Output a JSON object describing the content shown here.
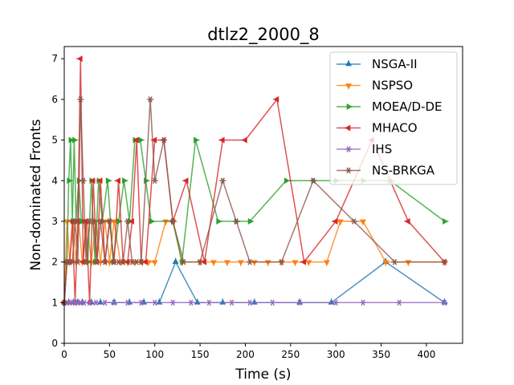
{
  "chart_data": {
    "type": "line",
    "title": "dtlz2_2000_8",
    "xlabel": "Time (s)",
    "ylabel": "Non-dominated Fronts",
    "xlim": [
      0,
      440
    ],
    "ylim": [
      0,
      7.3
    ],
    "xticks": [
      0,
      50,
      100,
      150,
      200,
      250,
      300,
      350,
      400
    ],
    "yticks": [
      0,
      1,
      2,
      3,
      4,
      5,
      6,
      7
    ],
    "legend_position": "upper-right",
    "grid": false,
    "series": [
      {
        "name": "NSGA-II",
        "color": "#1f77b4",
        "marker": "tri-up",
        "x": [
          0,
          5,
          10,
          15,
          20,
          30,
          40,
          55,
          72,
          88,
          105,
          123,
          147,
          175,
          210,
          260,
          295,
          355,
          420
        ],
        "y": [
          1,
          1,
          1,
          1,
          1,
          1,
          1,
          1,
          1,
          1,
          1,
          2,
          1,
          1,
          1,
          1,
          1,
          2,
          1
        ]
      },
      {
        "name": "NSPSO",
        "color": "#ff7f0e",
        "marker": "tri-down",
        "x": [
          0,
          3,
          6,
          10,
          13,
          16,
          20,
          25,
          30,
          35,
          40,
          45,
          50,
          55,
          62,
          70,
          78,
          86,
          93,
          100,
          112,
          120,
          130,
          150,
          165,
          180,
          195,
          210,
          225,
          240,
          255,
          270,
          290,
          305,
          330,
          355,
          380,
          420
        ],
        "y": [
          1,
          3,
          2,
          3,
          2,
          3,
          2,
          3,
          2,
          3,
          2,
          3,
          2,
          3,
          2,
          2,
          2,
          2,
          2,
          2,
          3,
          3,
          2,
          2,
          2,
          2,
          2,
          2,
          2,
          2,
          2,
          2,
          2,
          3,
          3,
          2,
          2,
          2
        ]
      },
      {
        "name": "MOEA/D-DE",
        "color": "#2ca02c",
        "marker": "tri-left",
        "x": [
          0,
          3,
          5,
          7,
          9,
          11,
          13,
          16,
          19,
          22,
          26,
          30,
          34,
          38,
          42,
          48,
          54,
          60,
          66,
          72,
          78,
          84,
          90,
          96,
          120,
          130,
          145,
          170,
          190,
          205,
          245,
          275,
          300,
          330,
          360,
          420
        ],
        "y": [
          1,
          2,
          4,
          5,
          3,
          5,
          3,
          4,
          3,
          3,
          2,
          4,
          2,
          4,
          3,
          4,
          2,
          3,
          4,
          3,
          5,
          5,
          4,
          3,
          3,
          2,
          5,
          3,
          3,
          3,
          4,
          4,
          4,
          4,
          4,
          3
        ]
      },
      {
        "name": "MHACO",
        "color": "#d62728",
        "marker": "tri-right",
        "x": [
          0,
          3,
          6,
          9,
          12,
          15,
          18,
          21,
          24,
          28,
          32,
          36,
          40,
          45,
          50,
          55,
          60,
          65,
          70,
          75,
          80,
          85,
          90,
          100,
          110,
          120,
          135,
          155,
          175,
          200,
          235,
          265,
          300,
          340,
          380,
          420
        ],
        "y": [
          1,
          2,
          2,
          3,
          1,
          3,
          7,
          2,
          3,
          1,
          4,
          2,
          4,
          2,
          3,
          2,
          4,
          2,
          2,
          3,
          5,
          2,
          2,
          5,
          5,
          3,
          4,
          2,
          5,
          5,
          6,
          2,
          3,
          5,
          3,
          2
        ]
      },
      {
        "name": "IHS",
        "color": "#9467bd",
        "marker": "tri-1",
        "x": [
          0,
          3,
          6,
          9,
          12,
          15,
          18,
          22,
          28,
          35,
          45,
          55,
          70,
          85,
          100,
          120,
          140,
          160,
          185,
          205,
          230,
          260,
          300,
          330,
          370,
          420
        ],
        "y": [
          1,
          1,
          1,
          1,
          1,
          1,
          1,
          1,
          1,
          1,
          1,
          1,
          1,
          1,
          1,
          1,
          1,
          1,
          1,
          1,
          1,
          1,
          1,
          1,
          1,
          1
        ]
      },
      {
        "name": "NS-BRKGA",
        "color": "#8c564b",
        "marker": "tri-2",
        "x": [
          0,
          3,
          6,
          9,
          12,
          15,
          18,
          21,
          24,
          28,
          32,
          36,
          40,
          45,
          50,
          55,
          60,
          65,
          70,
          75,
          80,
          85,
          95,
          100,
          110,
          120,
          132,
          150,
          175,
          190,
          205,
          240,
          275,
          320,
          365,
          420
        ],
        "y": [
          1,
          2,
          2,
          2,
          3,
          2,
          6,
          4,
          2,
          3,
          3,
          2,
          3,
          2,
          3,
          2,
          2,
          2,
          3,
          2,
          2,
          2,
          6,
          4,
          5,
          3,
          2,
          2,
          4,
          3,
          2,
          2,
          4,
          3,
          2,
          2
        ]
      }
    ]
  }
}
